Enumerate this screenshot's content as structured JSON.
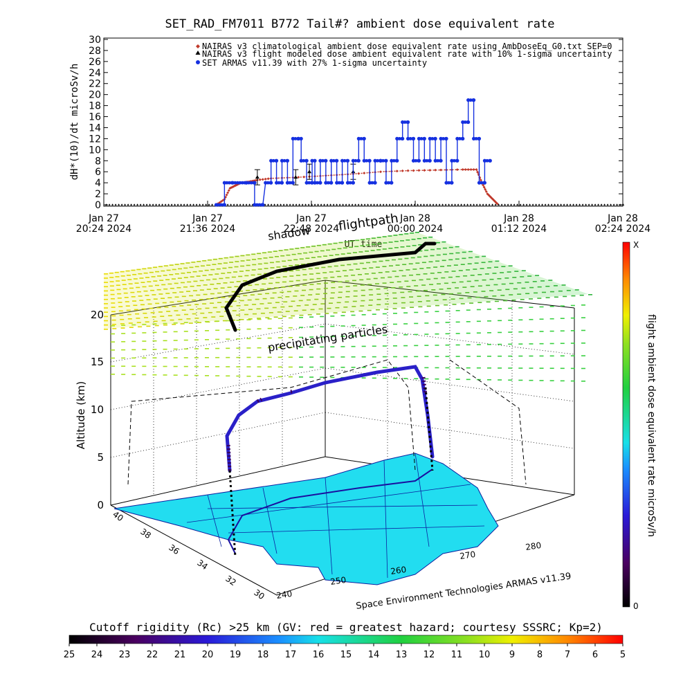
{
  "chart_data": [
    {
      "type": "line",
      "title": "SET_RAD_FM7011  B772 Tail#? ambient dose equivalent rate",
      "ylabel": "dH*(10)/dt microSv/h",
      "xlabel": "UT time",
      "ylim": [
        0,
        30
      ],
      "y_ticks": [
        "0",
        "2",
        "4",
        "6",
        "8",
        "10",
        "12",
        "14",
        "16",
        "18",
        "20",
        "22",
        "24",
        "26",
        "28",
        "30"
      ],
      "x_ticks": [
        {
          "line1": "Jan 27",
          "line2": "20:24 2024"
        },
        {
          "line1": "Jan 27",
          "line2": "21:36 2024"
        },
        {
          "line1": "Jan 27",
          "line2": "22:48 2024"
        },
        {
          "line1": "Jan 28",
          "line2": "00:00 2024"
        },
        {
          "line1": "Jan 28",
          "line2": "01:12 2024"
        },
        {
          "line1": "Jan 28",
          "line2": "02:24 2024"
        }
      ],
      "legend": [
        {
          "marker": "diamond",
          "color": "#c0392b",
          "label": "NAIRAS v3 climatological ambient dose equivalent rate using AmbDoseEq_G0.txt SEP=0"
        },
        {
          "marker": "triangle",
          "color": "#000000",
          "label": "NAIRAS v3 flight modeled dose ambient equivalent rate with 10% 1-sigma uncertainty"
        },
        {
          "marker": "circle",
          "color": "#1530e0",
          "label": "SET ARMAS v11.39 with 27% 1-sigma uncertainty"
        }
      ],
      "legend_position": "top",
      "series": [
        {
          "name": "SET ARMAS v11.39 with 27% 1-sigma uncertainty",
          "color": "#1530e0",
          "x_minutes": [
            0,
            6,
            6,
            12,
            22,
            28,
            28,
            34,
            36,
            40,
            40,
            44,
            44,
            48,
            48,
            52,
            52,
            56,
            56,
            60,
            60,
            62,
            62,
            66,
            66,
            70,
            70,
            72,
            72,
            76,
            76,
            80,
            80,
            84,
            84,
            88,
            88,
            92,
            92,
            96,
            96,
            100,
            100,
            104,
            104,
            108,
            108,
            112,
            112,
            116,
            116,
            120,
            120,
            124,
            124,
            128,
            128,
            132,
            132,
            136,
            136,
            140,
            140,
            144,
            144,
            148,
            148,
            152,
            152,
            156,
            156,
            160,
            160,
            164,
            164,
            168,
            168,
            172,
            172,
            176,
            176,
            180,
            180,
            184,
            184,
            188,
            188,
            192,
            192,
            196,
            196,
            200
          ],
          "values": [
            0,
            0,
            4,
            4,
            4,
            4,
            0,
            0,
            4,
            4,
            8,
            8,
            4,
            4,
            8,
            8,
            4,
            4,
            12,
            12,
            12,
            12,
            8,
            8,
            4,
            4,
            8,
            8,
            4,
            4,
            8,
            8,
            4,
            4,
            8,
            8,
            4,
            4,
            8,
            8,
            4,
            4,
            8,
            8,
            12,
            12,
            8,
            8,
            4,
            4,
            8,
            8,
            8,
            8,
            4,
            4,
            8,
            8,
            12,
            12,
            15,
            15,
            12,
            12,
            8,
            8,
            12,
            12,
            8,
            8,
            12,
            12,
            8,
            8,
            12,
            12,
            4,
            4,
            8,
            8,
            12,
            12,
            15,
            15,
            19,
            19,
            12,
            12,
            4,
            4,
            8,
            8
          ]
        },
        {
          "name": "NAIRAS v3 climatological ambient dose equivalent rate using AmbDoseEq_G0.txt SEP=0",
          "color": "#c0392b",
          "x_minutes": [
            0,
            6,
            10,
            14,
            18,
            24,
            30,
            40,
            60,
            80,
            100,
            120,
            140,
            160,
            180,
            190,
            194,
            198,
            202,
            206
          ],
          "values": [
            0,
            1,
            3,
            3.5,
            4,
            4.2,
            4.5,
            4.8,
            5,
            5.3,
            5.6,
            6,
            6.2,
            6.3,
            6.4,
            6.4,
            4,
            2,
            1,
            0
          ]
        },
        {
          "name": "NAIRAS v3 flight modeled dose ambient equivalent rate with 10% 1-sigma uncertainty",
          "color": "#000000",
          "error_bar_points": [
            [
              30,
              5
            ],
            [
              58,
              5
            ],
            [
              68,
              6
            ],
            [
              100,
              6
            ]
          ]
        }
      ],
      "grid": false
    },
    {
      "type": "scatter",
      "subtitle_annotations": [
        "shadow",
        "flightpath",
        "precipitating particles"
      ],
      "zlabel": "Altitude (km)",
      "z_ticks": [
        "0",
        "5",
        "10",
        "15",
        "20"
      ],
      "lat_ticks": [
        "40",
        "38",
        "36",
        "34",
        "32",
        "30"
      ],
      "lon_ticks": [
        "240",
        "250",
        "260",
        "270",
        "280"
      ],
      "credit": "Space Environment Technologies ARMAS v11.39",
      "colorbar_vertical": {
        "label": "flight ambient dose equivalent rate microSv/h",
        "top_label": "X",
        "bottom_label": "0"
      },
      "colorbar_horizontal": {
        "label": "Cutoff rigidity (Rc) >25 km (GV: red = greatest hazard; courtesy SSSRC; Kp=2)",
        "ticks": [
          "25",
          "24",
          "23",
          "22",
          "21",
          "20",
          "19",
          "18",
          "17",
          "16",
          "15",
          "14",
          "13",
          "12",
          "11",
          "10",
          "9",
          "8",
          "7",
          "6",
          "5"
        ]
      }
    }
  ]
}
